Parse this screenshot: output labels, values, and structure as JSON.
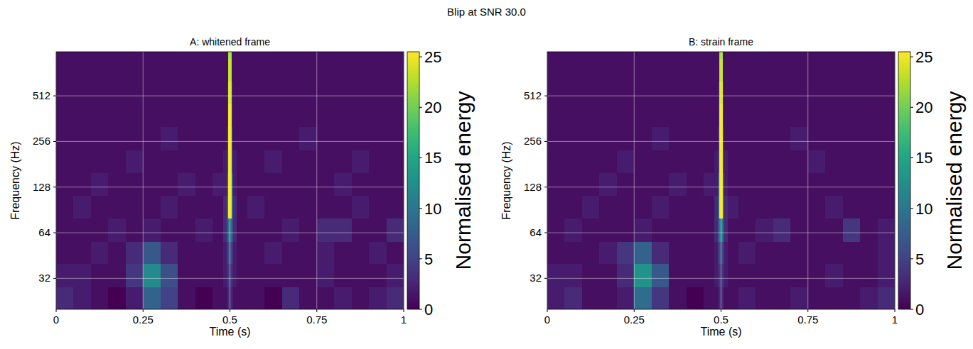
{
  "title": "Blip at SNR 30.0",
  "chart_data": [
    {
      "type": "heatmap",
      "title": "A: whitened frame",
      "x_label": "Time (s)",
      "y_label": "Frequency (Hz)",
      "xlim": [
        0,
        1
      ],
      "xticks": [
        0,
        0.25,
        0.5,
        0.75,
        1
      ],
      "ylim": [
        20,
        1000
      ],
      "yticks": [
        32,
        64,
        128,
        256,
        512
      ],
      "log": "y",
      "grid": true,
      "time_edges": [
        0,
        0.05,
        0.1,
        0.15,
        0.2,
        0.25,
        0.3,
        0.35,
        0.4,
        0.45,
        0.48,
        0.49,
        0.495,
        0.505,
        0.51,
        0.52,
        0.55,
        0.6,
        0.65,
        0.7,
        0.75,
        0.8,
        0.85,
        0.9,
        0.95,
        1
      ],
      "freq_edges": [
        20,
        28,
        40,
        56,
        80,
        113,
        160,
        226,
        320,
        452,
        640,
        905,
        1000
      ],
      "cells": [
        [
          3,
          2,
          1,
          0,
          2,
          8,
          5,
          1,
          0,
          1,
          1,
          2,
          3,
          2,
          1,
          1,
          1,
          0,
          3,
          1,
          1,
          2,
          1,
          2,
          3
        ],
        [
          2,
          2,
          1,
          1,
          4,
          12,
          6,
          1,
          1,
          1,
          2,
          3,
          4,
          3,
          2,
          1,
          1,
          1,
          1,
          1,
          2,
          1,
          1,
          1,
          2
        ],
        [
          1,
          1,
          2,
          1,
          3,
          7,
          3,
          1,
          1,
          1,
          2,
          4,
          6,
          4,
          2,
          1,
          1,
          2,
          1,
          1,
          2,
          1,
          1,
          2,
          1
        ],
        [
          1,
          1,
          1,
          2,
          1,
          2,
          1,
          1,
          2,
          1,
          3,
          6,
          10,
          6,
          3,
          1,
          1,
          1,
          2,
          1,
          3,
          3,
          1,
          1,
          3
        ],
        [
          1,
          2,
          1,
          1,
          1,
          1,
          2,
          1,
          1,
          1,
          3,
          8,
          25,
          8,
          3,
          1,
          2,
          1,
          1,
          1,
          1,
          1,
          2,
          1,
          1
        ],
        [
          1,
          1,
          2,
          1,
          1,
          1,
          1,
          2,
          1,
          2,
          2,
          6,
          25,
          7,
          2,
          1,
          1,
          1,
          1,
          1,
          1,
          2,
          1,
          1,
          1
        ],
        [
          1,
          1,
          1,
          1,
          2,
          1,
          1,
          1,
          1,
          1,
          2,
          4,
          25,
          4,
          2,
          1,
          1,
          2,
          1,
          1,
          1,
          1,
          2,
          1,
          1
        ],
        [
          1,
          1,
          1,
          1,
          1,
          1,
          2,
          1,
          1,
          1,
          1,
          3,
          25,
          3,
          1,
          1,
          1,
          1,
          1,
          2,
          1,
          1,
          1,
          1,
          1
        ],
        [
          1,
          1,
          1,
          1,
          1,
          1,
          1,
          1,
          1,
          1,
          1,
          2,
          25,
          2,
          1,
          1,
          1,
          1,
          1,
          1,
          1,
          1,
          1,
          1,
          1
        ],
        [
          1,
          1,
          1,
          1,
          1,
          1,
          1,
          1,
          1,
          1,
          1,
          2,
          24,
          2,
          1,
          1,
          1,
          1,
          1,
          1,
          1,
          1,
          1,
          1,
          1
        ],
        [
          1,
          1,
          1,
          1,
          1,
          1,
          1,
          1,
          1,
          1,
          1,
          1,
          23,
          1,
          1,
          1,
          1,
          1,
          1,
          1,
          1,
          1,
          1,
          1,
          1
        ],
        [
          1,
          1,
          1,
          1,
          1,
          1,
          1,
          1,
          1,
          1,
          1,
          1,
          22,
          1,
          1,
          1,
          1,
          1,
          1,
          1,
          1,
          1,
          1,
          1,
          1
        ]
      ],
      "colorbar_label": "Normalised energy",
      "colorbar_range": [
        0,
        25.5
      ],
      "colorbar_ticks": [
        0,
        5,
        10,
        15,
        20,
        25
      ]
    },
    {
      "type": "heatmap",
      "title": "B: strain frame",
      "x_label": "Time (s)",
      "y_label": "Frequency (Hz)",
      "xlim": [
        0,
        1
      ],
      "xticks": [
        0,
        0.25,
        0.5,
        0.75,
        1
      ],
      "ylim": [
        20,
        1000
      ],
      "yticks": [
        32,
        64,
        128,
        256,
        512
      ],
      "log": "y",
      "grid": true,
      "time_edges": [
        0,
        0.05,
        0.1,
        0.15,
        0.2,
        0.25,
        0.3,
        0.35,
        0.4,
        0.45,
        0.48,
        0.49,
        0.495,
        0.505,
        0.51,
        0.52,
        0.55,
        0.6,
        0.65,
        0.7,
        0.75,
        0.8,
        0.85,
        0.9,
        0.95,
        1
      ],
      "freq_edges": [
        20,
        28,
        40,
        56,
        80,
        113,
        160,
        226,
        320,
        452,
        640,
        905,
        1000
      ],
      "cells": [
        [
          2,
          3,
          1,
          1,
          2,
          9,
          4,
          1,
          0,
          1,
          1,
          2,
          3,
          2,
          1,
          1,
          2,
          1,
          1,
          2,
          1,
          1,
          1,
          2,
          3
        ],
        [
          2,
          2,
          1,
          1,
          3,
          13,
          7,
          1,
          1,
          1,
          2,
          3,
          4,
          3,
          2,
          1,
          1,
          1,
          1,
          1,
          1,
          2,
          1,
          1,
          2
        ],
        [
          1,
          1,
          1,
          2,
          4,
          8,
          3,
          1,
          1,
          1,
          2,
          4,
          6,
          4,
          2,
          1,
          2,
          1,
          1,
          1,
          1,
          1,
          1,
          1,
          2
        ],
        [
          1,
          2,
          1,
          1,
          1,
          2,
          1,
          1,
          1,
          1,
          3,
          6,
          11,
          6,
          3,
          1,
          1,
          2,
          3,
          1,
          1,
          1,
          4,
          1,
          2
        ],
        [
          1,
          1,
          2,
          1,
          1,
          1,
          2,
          1,
          1,
          1,
          3,
          8,
          25,
          8,
          3,
          2,
          1,
          1,
          1,
          1,
          1,
          2,
          1,
          1,
          1
        ],
        [
          1,
          1,
          1,
          2,
          1,
          1,
          1,
          2,
          1,
          2,
          2,
          6,
          25,
          7,
          2,
          1,
          1,
          1,
          1,
          1,
          1,
          1,
          1,
          1,
          1
        ],
        [
          1,
          1,
          1,
          1,
          2,
          1,
          1,
          1,
          1,
          1,
          2,
          4,
          25,
          4,
          2,
          1,
          1,
          1,
          1,
          1,
          2,
          1,
          1,
          1,
          1
        ],
        [
          1,
          1,
          1,
          1,
          1,
          1,
          2,
          1,
          1,
          1,
          1,
          3,
          25,
          3,
          1,
          1,
          1,
          1,
          1,
          2,
          1,
          1,
          1,
          1,
          1
        ],
        [
          1,
          1,
          1,
          1,
          1,
          1,
          1,
          1,
          1,
          1,
          1,
          2,
          25,
          2,
          1,
          1,
          1,
          1,
          1,
          1,
          1,
          1,
          1,
          1,
          1
        ],
        [
          1,
          1,
          1,
          1,
          1,
          1,
          1,
          1,
          1,
          1,
          1,
          2,
          24,
          2,
          1,
          1,
          1,
          1,
          1,
          1,
          1,
          1,
          1,
          1,
          1
        ],
        [
          1,
          1,
          1,
          1,
          1,
          1,
          1,
          1,
          1,
          1,
          1,
          1,
          23,
          1,
          1,
          1,
          1,
          1,
          1,
          1,
          1,
          1,
          1,
          1,
          1
        ],
        [
          1,
          1,
          1,
          1,
          1,
          1,
          1,
          1,
          1,
          1,
          1,
          1,
          22,
          1,
          1,
          1,
          1,
          1,
          1,
          1,
          1,
          1,
          1,
          1,
          1
        ]
      ],
      "colorbar_label": "Normalised energy",
      "colorbar_range": [
        0,
        25.5
      ],
      "colorbar_ticks": [
        0,
        5,
        10,
        15,
        20,
        25
      ]
    }
  ]
}
